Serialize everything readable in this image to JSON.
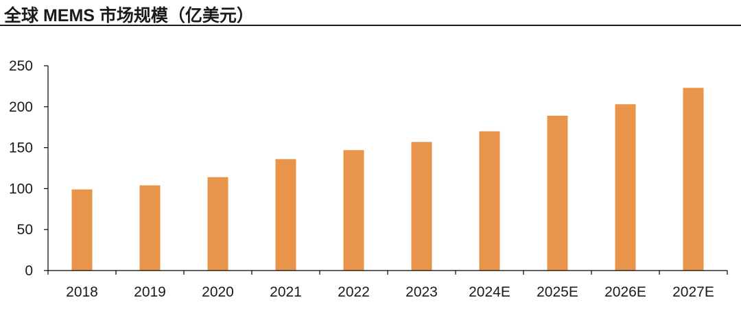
{
  "chart_data": {
    "type": "bar",
    "title": "全球 MEMS 市场规模（亿美元）",
    "categories": [
      "2018",
      "2019",
      "2020",
      "2021",
      "2022",
      "2023",
      "2024E",
      "2025E",
      "2026E",
      "2027E"
    ],
    "values": [
      99,
      104,
      114,
      136,
      147,
      157,
      170,
      189,
      203,
      223
    ],
    "ylim": [
      0,
      250
    ],
    "yticks": [
      0,
      50,
      100,
      150,
      200,
      250
    ],
    "xlabel": "",
    "ylabel": "",
    "grid": false,
    "bar_color": "#E8944A",
    "axis_color": "#000000"
  }
}
